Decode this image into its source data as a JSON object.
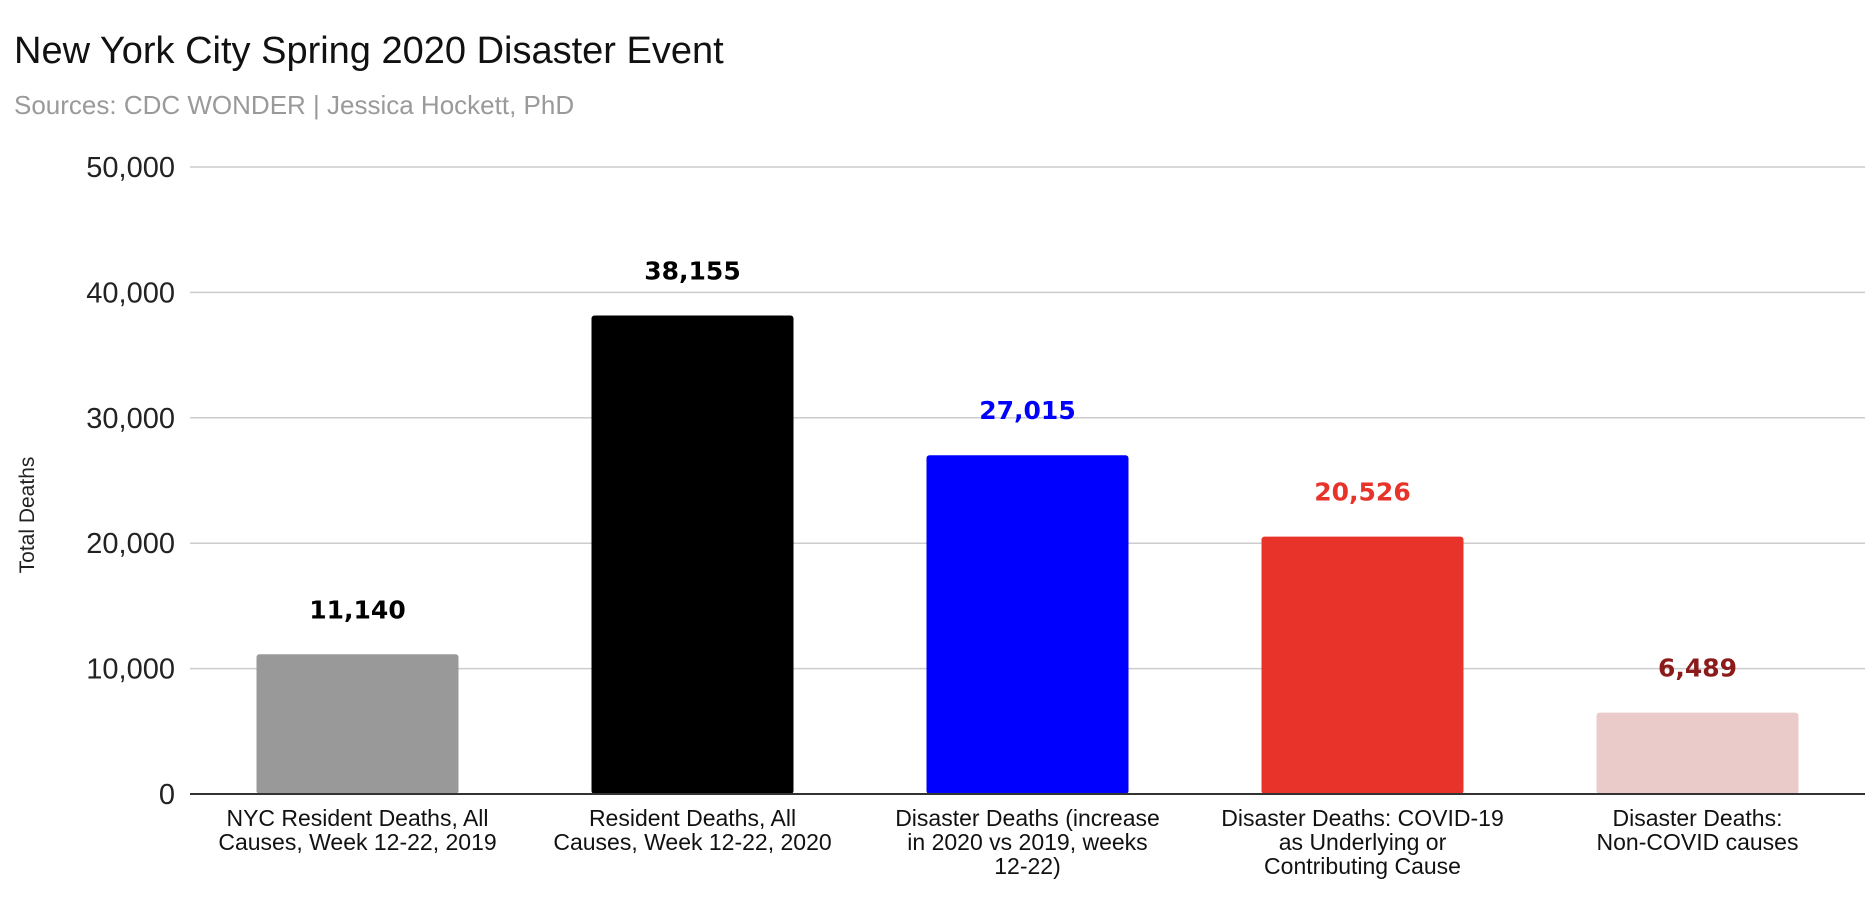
{
  "chart_data": {
    "type": "bar",
    "title": "New York City Spring 2020 Disaster Event",
    "subtitle": "Sources: CDC WONDER | Jessica Hockett, PhD",
    "xlabel": "",
    "ylabel": "Total Deaths",
    "ylim": [
      0,
      50000
    ],
    "yticks": [
      0,
      10000,
      20000,
      30000,
      40000,
      50000
    ],
    "ytick_labels": [
      "0",
      "10,000",
      "20,000",
      "30,000",
      "40,000",
      "50,000"
    ],
    "grid": true,
    "legend": "none",
    "categories": [
      [
        "NYC Resident Deaths, All",
        "Causes, Week 12-22, 2019"
      ],
      [
        "Resident Deaths, All",
        "Causes, Week 12-22, 2020"
      ],
      [
        "Disaster Deaths (increase",
        "in 2020 vs 2019, weeks",
        "12-22)"
      ],
      [
        "Disaster Deaths: COVID-19",
        "as Underlying or",
        "Contributing Cause"
      ],
      [
        "Disaster Deaths:",
        "Non-COVID causes"
      ]
    ],
    "values": [
      11140,
      38155,
      27015,
      20526,
      6489
    ],
    "value_labels": [
      "11,140",
      "38,155",
      "27,015",
      "20,526",
      "6,489"
    ],
    "bar_colors": [
      "#999999",
      "#000000",
      "#0000ff",
      "#e8332a",
      "#eacbc9"
    ],
    "label_colors": [
      "#000000",
      "#000000",
      "#0000ff",
      "#e8332a",
      "#8b1a1a"
    ]
  }
}
